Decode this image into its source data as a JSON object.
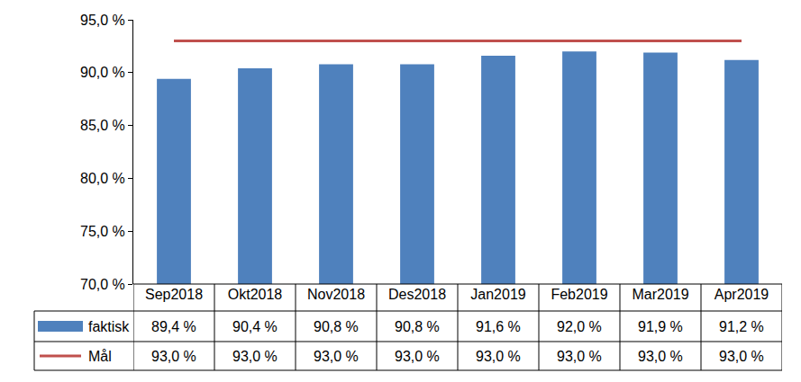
{
  "chart_data": {
    "type": "bar",
    "categories": [
      "Sep2018",
      "Okt2018",
      "Nov2018",
      "Des2018",
      "Jan2019",
      "Feb2019",
      "Mar2019",
      "Apr2019"
    ],
    "series": [
      {
        "name": "faktisk",
        "type": "bar",
        "color": "#4f81bd",
        "values": [
          89.4,
          90.4,
          90.8,
          90.8,
          91.6,
          92.0,
          91.9,
          91.2
        ],
        "value_labels": [
          "89,4 %",
          "90,4 %",
          "90,8 %",
          "90,8 %",
          "91,6 %",
          "92,0 %",
          "91,9 %",
          "91,2 %"
        ]
      },
      {
        "name": "Mål",
        "type": "line",
        "color": "#c0504d",
        "values": [
          93.0,
          93.0,
          93.0,
          93.0,
          93.0,
          93.0,
          93.0,
          93.0
        ],
        "value_labels": [
          "93,0 %",
          "93,0 %",
          "93,0 %",
          "93,0 %",
          "93,0 %",
          "93,0 %",
          "93,0 %",
          "93,0 %"
        ]
      }
    ],
    "ylim": [
      70,
      95
    ],
    "yticks": [
      {
        "value": 70,
        "label": "70,0 %"
      },
      {
        "value": 75,
        "label": "75,0 %"
      },
      {
        "value": 80,
        "label": "80,0 %"
      },
      {
        "value": 85,
        "label": "85,0 %"
      },
      {
        "value": 90,
        "label": "90,0 %"
      },
      {
        "value": 95,
        "label": "95,0 %"
      }
    ],
    "grid": false
  }
}
